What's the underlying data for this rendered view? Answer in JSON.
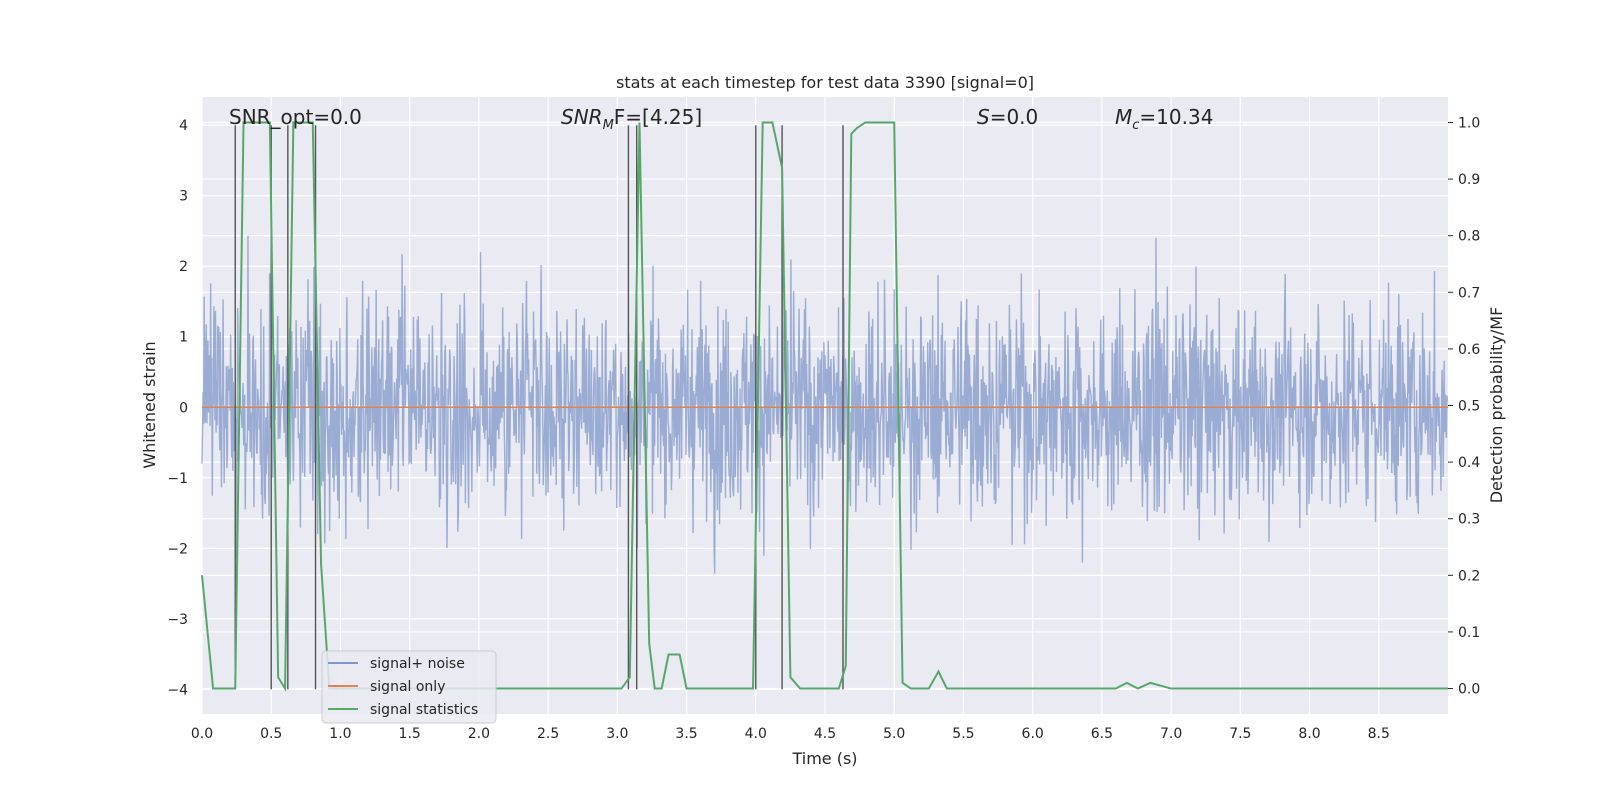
{
  "chart_data": {
    "type": "line",
    "title": "stats at each timestep for test data 3390 [signal=0]",
    "xlabel": "Time (s)",
    "ylabel_left": "Whitened strain",
    "ylabel_right": "Detection probability/MF",
    "xlim": [
      0,
      9.0
    ],
    "ylim_left": [
      -4.35,
      4.4
    ],
    "ylim_right": [
      -0.045,
      1.045
    ],
    "xticks": [
      "0.0",
      "0.5",
      "1.0",
      "1.5",
      "2.0",
      "2.5",
      "3.0",
      "3.5",
      "4.0",
      "4.5",
      "5.0",
      "5.5",
      "6.0",
      "6.5",
      "7.0",
      "7.5",
      "8.0",
      "8.5"
    ],
    "yticks_left": [
      "−4",
      "−3",
      "−2",
      "−1",
      "0",
      "1",
      "2",
      "3",
      "4"
    ],
    "yticks_right": [
      "0.0",
      "0.1",
      "0.2",
      "0.3",
      "0.4",
      "0.5",
      "0.6",
      "0.7",
      "0.8",
      "0.9",
      "1.0"
    ],
    "annotations": [
      {
        "text": "SNR_opt=0.0"
      },
      {
        "prefix": "SNR",
        "sub": "M",
        "suffix": "F=[4.25]"
      },
      {
        "prefix": "S",
        "suffix": "=0.0"
      },
      {
        "prefix": "M",
        "sub": "c",
        "suffix": "=10.34"
      }
    ],
    "legend": {
      "placement": "lower-left",
      "entries": [
        "signal+ noise",
        "signal only",
        "signal statistics"
      ]
    },
    "colors": {
      "noise": "#7f97c9",
      "signal": "#dd8452",
      "stats": "#55a868",
      "vlines": "#555555",
      "background": "#eaeaf2",
      "grid": "#ffffff"
    },
    "noise": {
      "duration": 9.0,
      "sample_rate": 256,
      "typical_amplitude": 2.0,
      "max_abs": 3.6
    },
    "signal_only": {
      "constant": 0.0
    },
    "vlines_x": [
      0.24,
      0.5,
      0.62,
      0.82,
      3.08,
      3.14,
      4.0,
      4.19,
      4.63
    ],
    "vlines_ymax": 4.0,
    "series_statistics": {
      "name": "signal statistics",
      "x": [
        0.0,
        0.08,
        0.24,
        0.3,
        0.33,
        0.49,
        0.55,
        0.6,
        0.66,
        0.69,
        0.8,
        0.86,
        0.92,
        3.03,
        3.09,
        3.16,
        3.23,
        3.27,
        3.32,
        3.37,
        3.45,
        3.5,
        3.55,
        3.98,
        4.05,
        4.12,
        4.19,
        4.25,
        4.32,
        4.6,
        4.65,
        4.69,
        4.73,
        4.79,
        4.85,
        5.0,
        5.06,
        5.12,
        5.25,
        5.32,
        5.38,
        5.45,
        6.6,
        6.68,
        6.76,
        6.85,
        7.0,
        9.0
      ],
      "y": [
        0.2,
        0.0,
        0.0,
        1.0,
        1.0,
        1.0,
        0.02,
        0.0,
        1.0,
        1.0,
        1.0,
        0.22,
        0.0,
        0.0,
        0.02,
        1.0,
        0.08,
        0.0,
        0.0,
        0.06,
        0.06,
        0.0,
        0.0,
        0.0,
        1.0,
        1.0,
        0.92,
        0.02,
        0.0,
        0.0,
        0.04,
        0.98,
        0.99,
        1.0,
        1.0,
        1.0,
        0.01,
        0.0,
        0.0,
        0.03,
        0.0,
        0.0,
        0.0,
        0.01,
        0.0,
        0.01,
        0.0,
        0.0
      ]
    }
  }
}
